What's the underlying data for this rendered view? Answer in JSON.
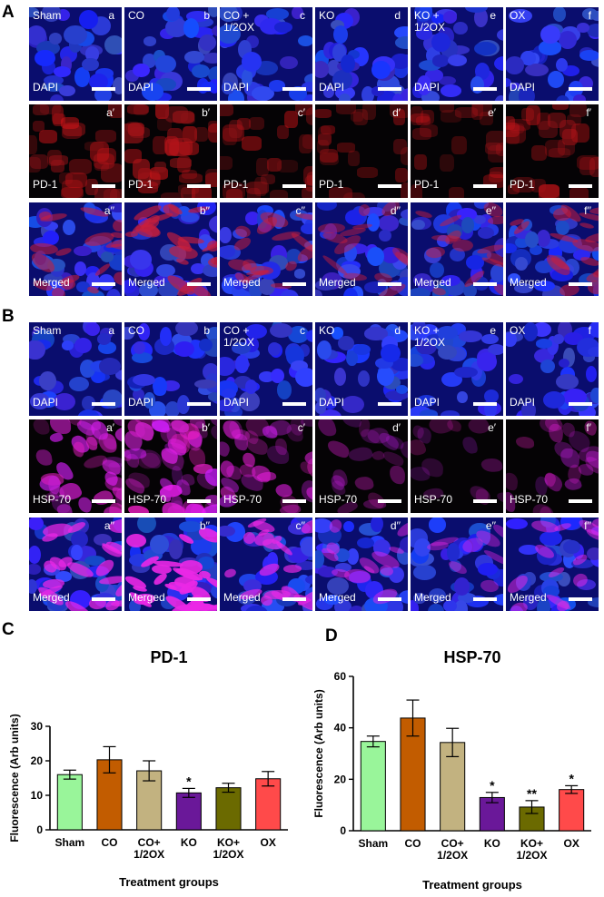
{
  "figure": {
    "panels": {
      "a": "A",
      "b": "B",
      "c": "C",
      "d": "D"
    },
    "columns": [
      {
        "name": "Sham",
        "letter": "a"
      },
      {
        "name": "CO",
        "letter": "b"
      },
      {
        "name": "CO +\n1/2OX",
        "letter": "c"
      },
      {
        "name": "KO",
        "letter": "d"
      },
      {
        "name": "KO +\n1/2OX",
        "letter": "e"
      },
      {
        "name": "OX",
        "letter": "f"
      }
    ],
    "gridA": {
      "rows": [
        {
          "stain": "DAPI",
          "suffix": "",
          "type": "dapi",
          "levels": [
            0.6,
            0.6,
            0.6,
            0.6,
            0.6,
            0.6
          ]
        },
        {
          "stain": "PD-1",
          "suffix": "′",
          "type": "pd1",
          "levels": [
            0.55,
            0.75,
            0.45,
            0.3,
            0.35,
            0.5
          ]
        },
        {
          "stain": "Merged",
          "suffix": "′′",
          "type": "mergedRed",
          "levels": [
            0.55,
            0.75,
            0.45,
            0.3,
            0.35,
            0.5
          ]
        }
      ]
    },
    "gridB": {
      "rows": [
        {
          "stain": "DAPI",
          "suffix": "",
          "type": "dapi",
          "levels": [
            0.6,
            0.6,
            0.6,
            0.6,
            0.6,
            0.6
          ]
        },
        {
          "stain": "HSP-70",
          "suffix": "′",
          "type": "hsp",
          "levels": [
            0.7,
            1.0,
            0.6,
            0.25,
            0.1,
            0.3
          ]
        },
        {
          "stain": "Merged",
          "suffix": "′′",
          "type": "mergedMagenta",
          "levels": [
            0.7,
            1.0,
            0.6,
            0.25,
            0.1,
            0.3
          ]
        }
      ]
    }
  },
  "chart_data": [
    {
      "type": "bar",
      "title": "PD-1",
      "xlabel": "Treatment groups",
      "ylabel": "Fluorescence (Arb units)",
      "ylim": [
        0,
        30
      ],
      "yticks": [
        0,
        10,
        20,
        30
      ],
      "categories": [
        "Sham",
        "CO",
        "CO+\n1/2OX",
        "KO",
        "KO+\n1/2OX",
        "OX"
      ],
      "values": [
        16.0,
        20.3,
        17.1,
        10.7,
        12.2,
        14.8
      ],
      "errors": [
        1.3,
        3.8,
        2.9,
        1.3,
        1.3,
        2.1
      ],
      "significance": [
        "",
        "",
        "",
        "*",
        "",
        ""
      ],
      "colors": [
        "#99f59a",
        "#c25c00",
        "#c2b280",
        "#6a1899",
        "#6b6a00",
        "#ff4a4a"
      ]
    },
    {
      "type": "bar",
      "title": "HSP-70",
      "xlabel": "Treatment groups",
      "ylabel": "Fluorescence (Arb units)",
      "ylim": [
        0,
        60
      ],
      "yticks": [
        0,
        20,
        40,
        60
      ],
      "categories": [
        "Sham",
        "CO",
        "CO+\n1/2OX",
        "KO",
        "KO+\n1/2OX",
        "OX"
      ],
      "values": [
        34.7,
        43.8,
        34.3,
        12.9,
        9.2,
        16.0
      ],
      "errors": [
        2.1,
        7.0,
        5.5,
        2.0,
        2.5,
        1.5
      ],
      "significance": [
        "",
        "",
        "",
        "*",
        "**",
        "*"
      ],
      "colors": [
        "#99f59a",
        "#c25c00",
        "#c2b280",
        "#6a1899",
        "#6b6a00",
        "#ff4a4a"
      ]
    }
  ]
}
